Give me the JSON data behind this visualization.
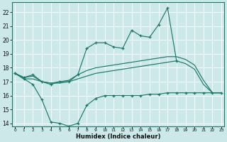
{
  "xlabel": "Humidex (Indice chaleur)",
  "x": [
    0,
    1,
    2,
    3,
    4,
    5,
    6,
    7,
    8,
    9,
    10,
    11,
    12,
    13,
    14,
    15,
    16,
    17,
    18,
    19,
    20,
    21,
    22,
    23
  ],
  "line_wavy": [
    17.6,
    17.3,
    17.5,
    17.0,
    16.8,
    17.0,
    17.0,
    17.5,
    19.4,
    19.8,
    19.8,
    19.5,
    19.4,
    20.7,
    20.3,
    20.2,
    21.1,
    22.3,
    18.5,
    18.2,
    17.0,
    16.2,
    16.2,
    16.2
  ],
  "line_upper": [
    17.6,
    17.3,
    17.4,
    17.0,
    16.9,
    17.0,
    17.1,
    17.5,
    17.8,
    18.0,
    18.1,
    18.2,
    18.3,
    18.4,
    18.5,
    18.6,
    18.7,
    18.8,
    18.8,
    18.6,
    18.2,
    17.1,
    16.2,
    16.2
  ],
  "line_lower": [
    17.6,
    17.2,
    17.2,
    17.0,
    16.9,
    16.9,
    17.0,
    17.2,
    17.4,
    17.6,
    17.7,
    17.8,
    17.9,
    18.0,
    18.1,
    18.2,
    18.3,
    18.4,
    18.5,
    18.3,
    17.9,
    16.8,
    16.2,
    16.2
  ],
  "line_bottom": [
    17.6,
    17.2,
    16.8,
    15.7,
    14.1,
    14.0,
    13.8,
    14.0,
    15.3,
    15.8,
    16.0,
    16.0,
    16.0,
    16.0,
    16.0,
    16.1,
    16.1,
    16.2,
    16.2,
    16.2,
    16.2,
    16.2,
    16.2,
    16.2
  ],
  "ylim": [
    13.8,
    22.7
  ],
  "yticks": [
    14,
    15,
    16,
    17,
    18,
    19,
    20,
    21,
    22
  ],
  "xlim": [
    -0.3,
    23.3
  ],
  "bg_color": "#cce8e8",
  "line_color": "#1a7a6a",
  "grid_color": "#ffffff"
}
